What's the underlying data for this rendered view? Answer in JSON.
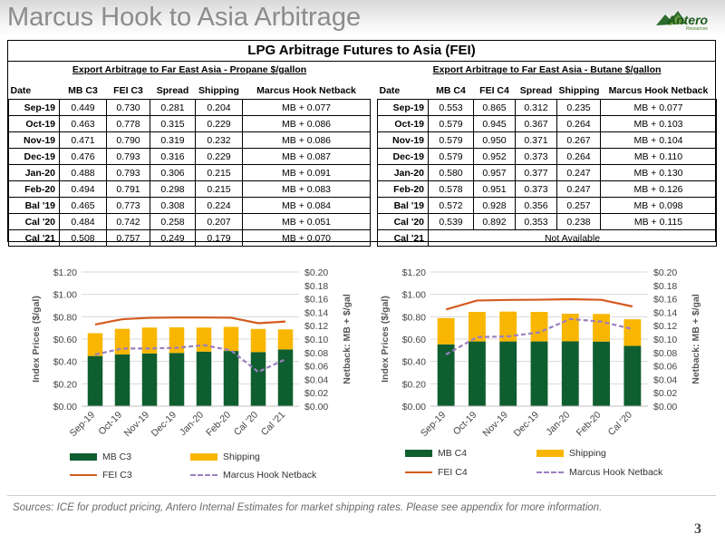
{
  "slide": {
    "title": "Marcus Hook to Asia Arbitrage",
    "logo_text": "Antero",
    "logo_sub": "Resources",
    "sources": "Sources: ICE for product pricing, Antero Internal Estimates for market shipping rates. Please see appendix for more information.",
    "page_number": "3"
  },
  "table": {
    "title": "LPG Arbitrage Futures to Asia (FEI)",
    "propane": {
      "subtitle": "Export Arbitrage to Far East Asia - Propane $/gallon",
      "headers": [
        "Date",
        "MB C3",
        "FEI C3",
        "Spread",
        "Shipping",
        "Marcus Hook Netback"
      ],
      "rows": [
        [
          "Sep-19",
          "0.449",
          "0.730",
          "0.281",
          "0.204",
          "MB + 0.077"
        ],
        [
          "Oct-19",
          "0.463",
          "0.778",
          "0.315",
          "0.229",
          "MB + 0.086"
        ],
        [
          "Nov-19",
          "0.471",
          "0.790",
          "0.319",
          "0.232",
          "MB + 0.086"
        ],
        [
          "Dec-19",
          "0.476",
          "0.793",
          "0.316",
          "0.229",
          "MB + 0.087"
        ],
        [
          "Jan-20",
          "0.488",
          "0.793",
          "0.306",
          "0.215",
          "MB + 0.091"
        ],
        [
          "Feb-20",
          "0.494",
          "0.791",
          "0.298",
          "0.215",
          "MB + 0.083"
        ],
        [
          "Bal '19",
          "0.465",
          "0.773",
          "0.308",
          "0.224",
          "MB + 0.084"
        ],
        [
          "Cal '20",
          "0.484",
          "0.742",
          "0.258",
          "0.207",
          "MB + 0.051"
        ],
        [
          "Cal '21",
          "0.508",
          "0.757",
          "0.249",
          "0.179",
          "MB + 0.070"
        ]
      ]
    },
    "butane": {
      "subtitle": "Export Arbitrage to Far East Asia - Butane $/gallon",
      "headers": [
        "Date",
        "MB C4",
        "FEI C4",
        "Spread",
        "Shipping",
        "Marcus Hook Netback"
      ],
      "rows": [
        [
          "Sep-19",
          "0.553",
          "0.865",
          "0.312",
          "0.235",
          "MB + 0.077"
        ],
        [
          "Oct-19",
          "0.579",
          "0.945",
          "0.367",
          "0.264",
          "MB + 0.103"
        ],
        [
          "Nov-19",
          "0.579",
          "0.950",
          "0.371",
          "0.267",
          "MB + 0.104"
        ],
        [
          "Dec-19",
          "0.579",
          "0.952",
          "0.373",
          "0.264",
          "MB + 0.110"
        ],
        [
          "Jan-20",
          "0.580",
          "0.957",
          "0.377",
          "0.247",
          "MB + 0.130"
        ],
        [
          "Feb-20",
          "0.578",
          "0.951",
          "0.373",
          "0.247",
          "MB + 0.126"
        ],
        [
          "Bal '19",
          "0.572",
          "0.928",
          "0.356",
          "0.257",
          "MB + 0.098"
        ],
        [
          "Cal '20",
          "0.539",
          "0.892",
          "0.353",
          "0.238",
          "MB + 0.115"
        ]
      ],
      "last_row": {
        "date": "Cal '21",
        "text": "Not Available"
      }
    }
  },
  "colors": {
    "mb": "#0f5e2f",
    "shipping": "#f9b600",
    "fei": "#d45b1f",
    "netback": "#9b7fbf",
    "grid": "#d9d9d9",
    "axis_text": "#444444"
  },
  "chart_data": [
    {
      "type": "bar",
      "stacked": true,
      "categories": [
        "Sep-19",
        "Oct-19",
        "Nov-19",
        "Dec-19",
        "Jan-20",
        "Feb-20",
        "Cal '20",
        "Cal '21"
      ],
      "ylabel": "Index Prices ($/gal)",
      "y2label": "Netback: MB + $/gal",
      "ylim": [
        0,
        1.2
      ],
      "y_ticks": [
        "$0.00",
        "$0.20",
        "$0.40",
        "$0.60",
        "$0.80",
        "$1.00",
        "$1.20"
      ],
      "y2lim": [
        0,
        0.2
      ],
      "y2_ticks": [
        "$0.00",
        "$0.02",
        "$0.04",
        "$0.06",
        "$0.08",
        "$0.10",
        "$0.12",
        "$0.14",
        "$0.16",
        "$0.18",
        "$0.20"
      ],
      "grid": true,
      "legend": [
        "MB C3",
        "Shipping",
        "FEI C3",
        "Marcus Hook Netback"
      ],
      "series": [
        {
          "name": "MB C3",
          "type": "bar",
          "values": [
            0.449,
            0.463,
            0.471,
            0.476,
            0.488,
            0.494,
            0.484,
            0.508
          ]
        },
        {
          "name": "Shipping",
          "type": "bar",
          "values": [
            0.204,
            0.229,
            0.232,
            0.229,
            0.215,
            0.215,
            0.207,
            0.179
          ]
        },
        {
          "name": "FEI C3",
          "type": "line",
          "values": [
            0.73,
            0.778,
            0.79,
            0.793,
            0.793,
            0.791,
            0.742,
            0.757
          ]
        },
        {
          "name": "Marcus Hook Netback",
          "type": "line",
          "axis": "right",
          "values": [
            0.077,
            0.086,
            0.086,
            0.087,
            0.091,
            0.083,
            0.051,
            0.07
          ]
        }
      ]
    },
    {
      "type": "bar",
      "stacked": true,
      "categories": [
        "Sep-19",
        "Oct-19",
        "Nov-19",
        "Dec-19",
        "Jan-20",
        "Feb-20",
        "Cal '20"
      ],
      "ylabel": "Index Prices ($/gal)",
      "y2label": "Netback: MB + $/gal",
      "ylim": [
        0,
        1.2
      ],
      "y_ticks": [
        "$0.00",
        "$0.20",
        "$0.40",
        "$0.60",
        "$0.80",
        "$1.00",
        "$1.20"
      ],
      "y2lim": [
        0,
        0.2
      ],
      "y2_ticks": [
        "$0.00",
        "$0.02",
        "$0.04",
        "$0.06",
        "$0.08",
        "$0.10",
        "$0.12",
        "$0.14",
        "$0.16",
        "$0.18",
        "$0.20"
      ],
      "grid": true,
      "legend": [
        "MB C4",
        "Shipping",
        "FEI C4",
        "Marcus Hook Netback"
      ],
      "series": [
        {
          "name": "MB C4",
          "type": "bar",
          "values": [
            0.553,
            0.579,
            0.579,
            0.579,
            0.58,
            0.578,
            0.539
          ]
        },
        {
          "name": "Shipping",
          "type": "bar",
          "values": [
            0.235,
            0.264,
            0.267,
            0.264,
            0.247,
            0.247,
            0.238
          ]
        },
        {
          "name": "FEI C4",
          "type": "line",
          "values": [
            0.865,
            0.945,
            0.95,
            0.952,
            0.957,
            0.951,
            0.892
          ]
        },
        {
          "name": "Marcus Hook Netback",
          "type": "line",
          "axis": "right",
          "values": [
            0.077,
            0.103,
            0.104,
            0.11,
            0.13,
            0.126,
            0.115
          ]
        }
      ]
    }
  ]
}
